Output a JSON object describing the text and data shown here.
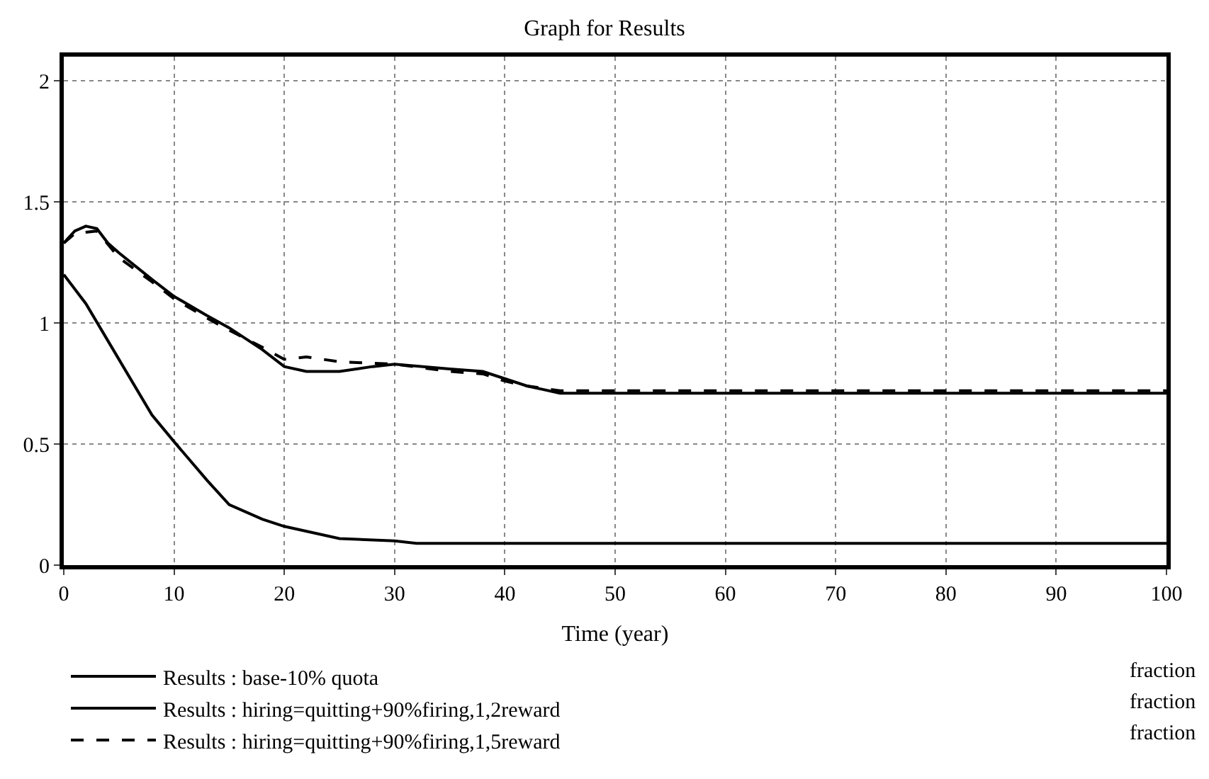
{
  "chart_data": {
    "type": "line",
    "title": "Graph for Results",
    "xlabel": "Time (year)",
    "xlim": [
      0,
      100
    ],
    "xticks": [
      0,
      10,
      20,
      30,
      40,
      50,
      60,
      70,
      80,
      90,
      100
    ],
    "ylim": [
      0,
      2.1
    ],
    "yticks": [
      0,
      0.5,
      1,
      1.5,
      2
    ],
    "grid": true,
    "legend": "bottom",
    "marker": "none",
    "series": [
      {
        "name": "Results : base-10% quota",
        "color": "#000000",
        "line_style": "solid",
        "x": [
          0,
          2,
          5,
          8,
          10,
          13,
          15,
          18,
          20,
          25,
          30,
          32,
          40,
          50,
          60,
          70,
          80,
          90,
          100
        ],
        "values": [
          1.2,
          1.08,
          0.85,
          0.62,
          0.51,
          0.35,
          0.25,
          0.19,
          0.16,
          0.11,
          0.1,
          0.09,
          0.09,
          0.09,
          0.09,
          0.09,
          0.09,
          0.09,
          0.09
        ]
      },
      {
        "name": "Results : hiring=quitting+90%firing,1,2reward",
        "color": "#000000",
        "line_style": "solid",
        "x": [
          0,
          1,
          2,
          3,
          4,
          5,
          8,
          10,
          13,
          15,
          18,
          20,
          22,
          25,
          28,
          30,
          35,
          38,
          40,
          42,
          45,
          50,
          60,
          70,
          80,
          90,
          100
        ],
        "values": [
          1.33,
          1.38,
          1.4,
          1.39,
          1.33,
          1.29,
          1.18,
          1.11,
          1.03,
          0.98,
          0.89,
          0.82,
          0.8,
          0.8,
          0.82,
          0.83,
          0.81,
          0.8,
          0.77,
          0.74,
          0.71,
          0.71,
          0.71,
          0.71,
          0.71,
          0.71,
          0.71
        ]
      },
      {
        "name": "Results : hiring=quitting+90%firing,1,5reward",
        "color": "#000000",
        "line_style": "dashed",
        "x": [
          0,
          1,
          3,
          5,
          8,
          10,
          13,
          15,
          18,
          20,
          22,
          25,
          30,
          35,
          38,
          40,
          42,
          45,
          50,
          60,
          70,
          80,
          90,
          100
        ],
        "values": [
          1.33,
          1.37,
          1.38,
          1.27,
          1.17,
          1.1,
          1.02,
          0.97,
          0.9,
          0.85,
          0.86,
          0.84,
          0.83,
          0.8,
          0.79,
          0.76,
          0.74,
          0.72,
          0.72,
          0.72,
          0.72,
          0.72,
          0.72,
          0.72
        ]
      }
    ],
    "annotations": [
      "fraction",
      "fraction",
      "fraction"
    ]
  }
}
